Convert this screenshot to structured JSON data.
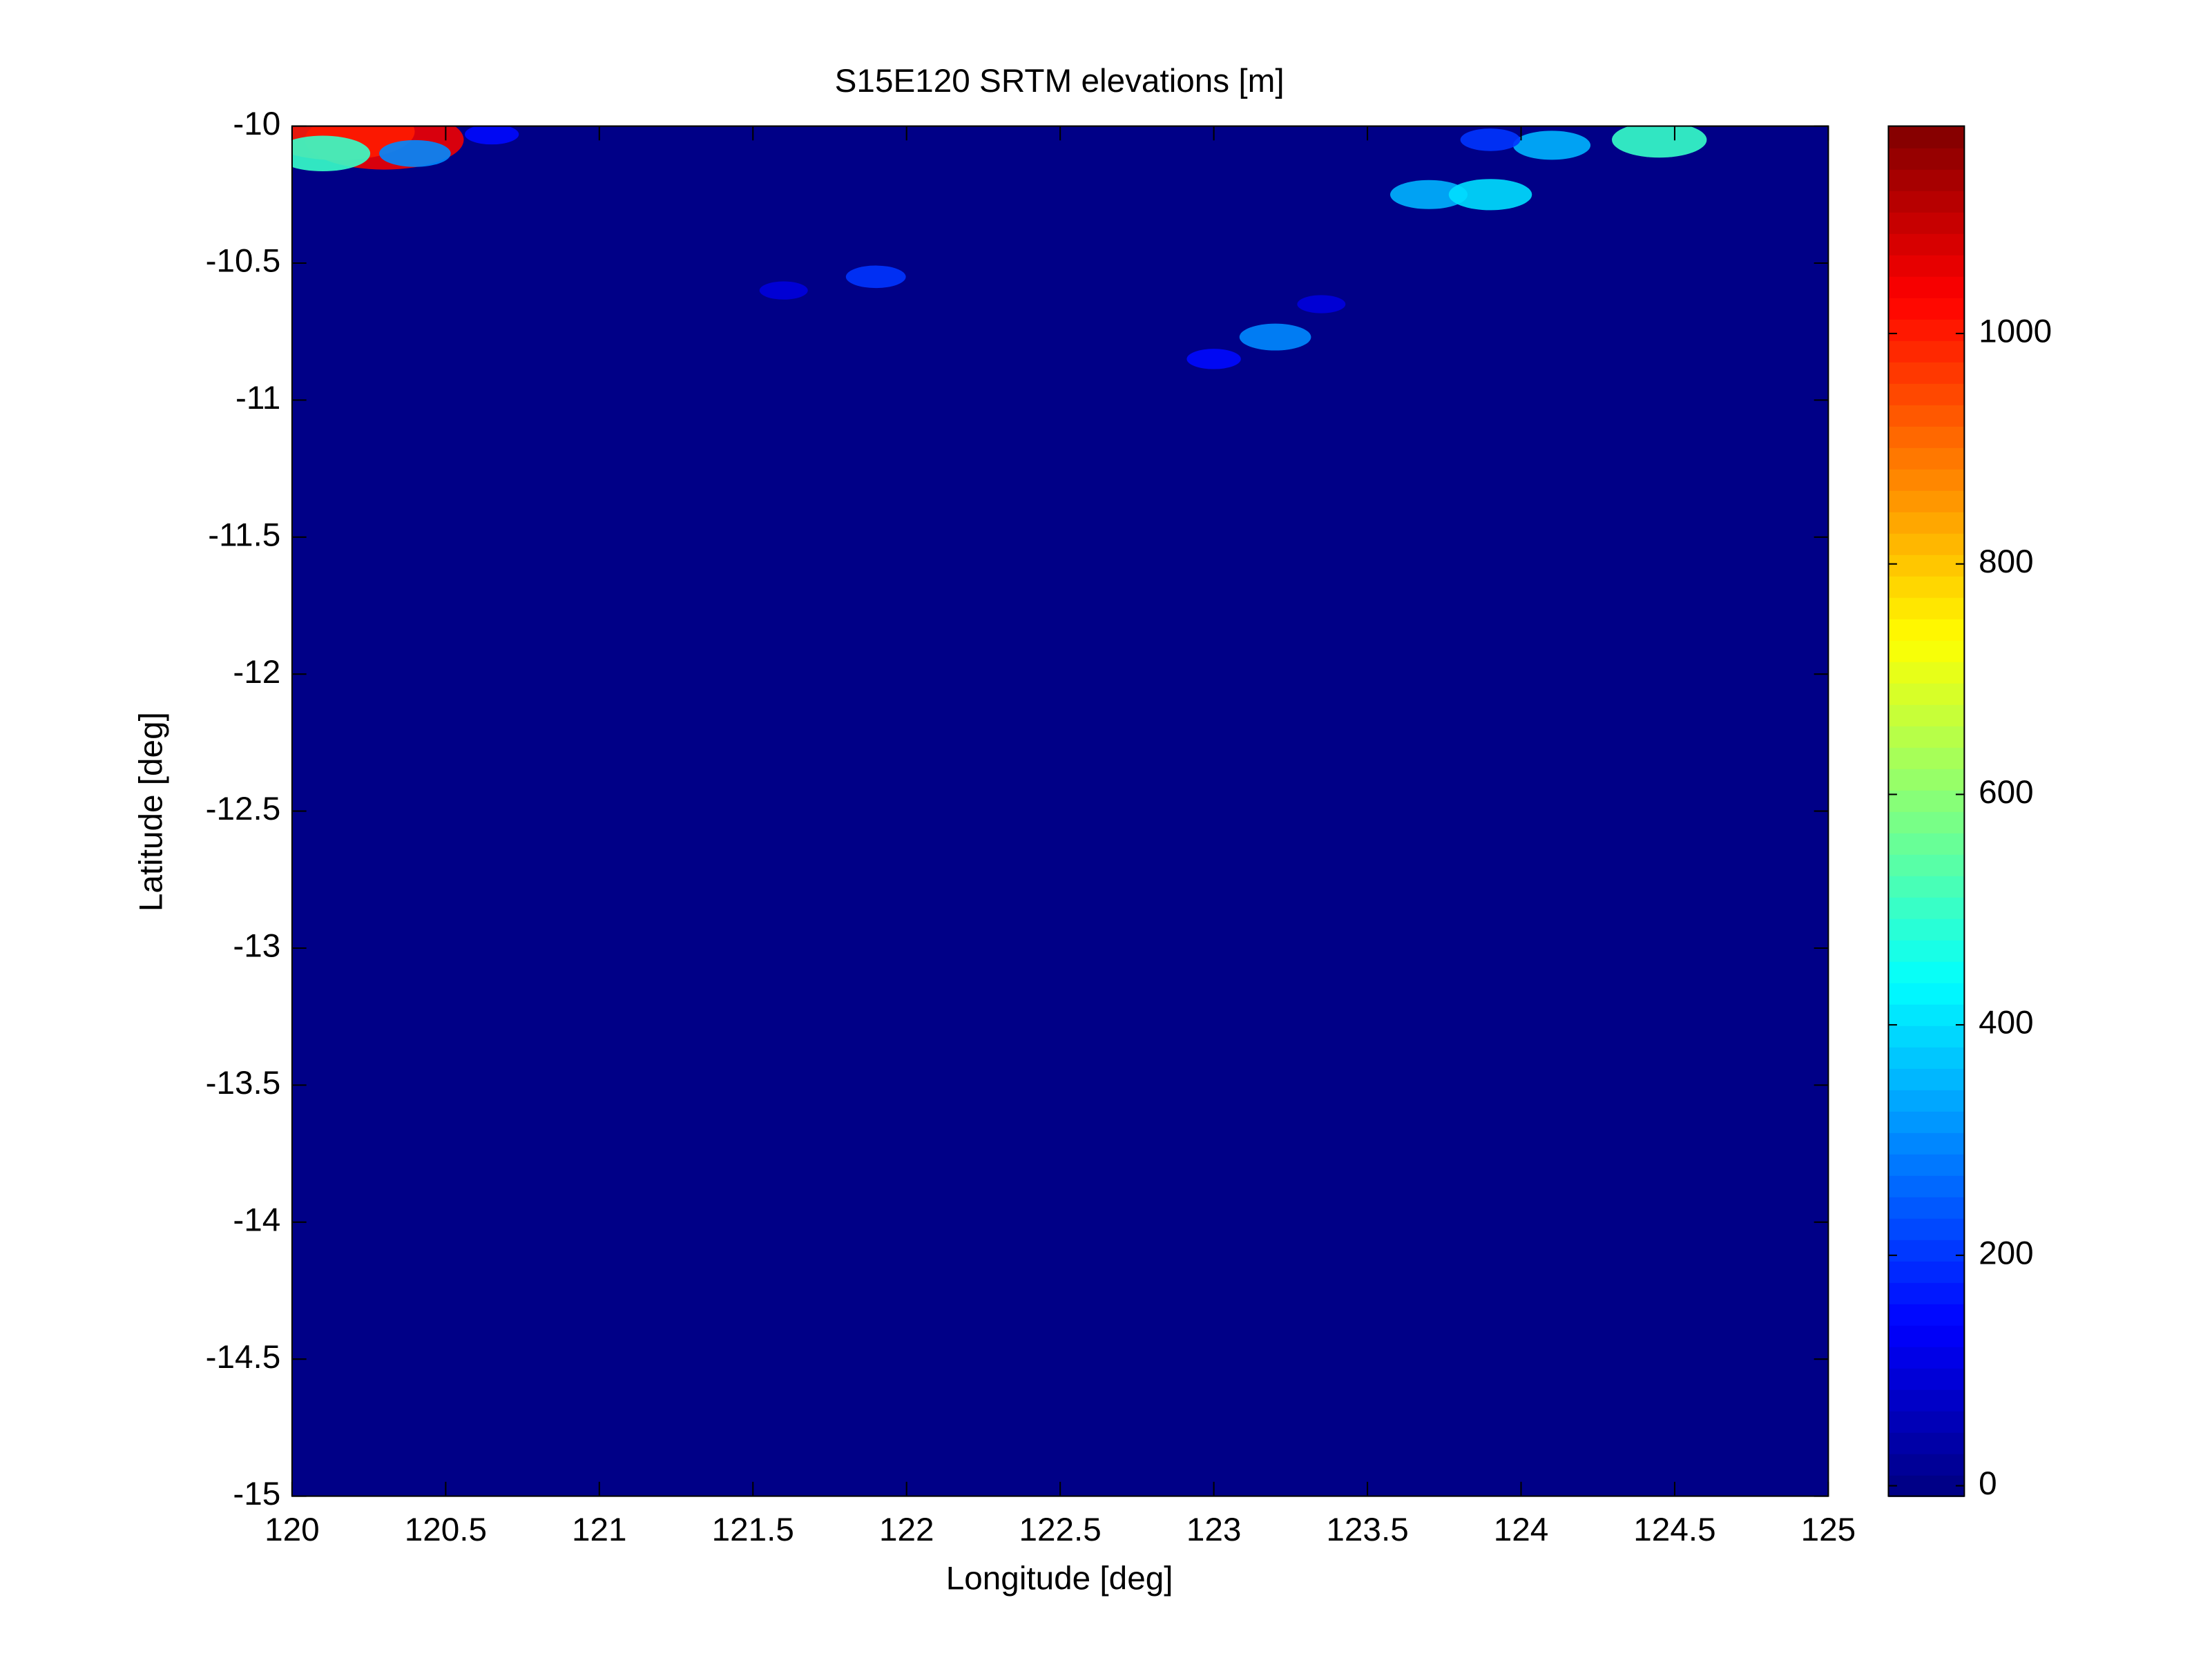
{
  "chart_data": {
    "type": "heatmap",
    "title": "S15E120 SRTM elevations [m]",
    "x_label": "Longitude [deg]",
    "y_label": "Latitude [deg]",
    "xlim": [
      120,
      125
    ],
    "xticks": [
      120,
      120.5,
      121,
      121.5,
      122,
      122.5,
      123,
      123.5,
      124,
      124.5,
      125
    ],
    "ylim": [
      -15,
      -10
    ],
    "yticks": [
      -15,
      -14.5,
      -14,
      -13.5,
      -13,
      -12.5,
      -12,
      -11.5,
      -11,
      -10.5,
      -10
    ],
    "clim": [
      -9,
      1180
    ],
    "cticks": [
      0,
      200,
      400,
      600,
      800,
      1000
    ],
    "colormap": "jet",
    "background_value": 0,
    "x": [
      120.3,
      120.15,
      120.1,
      120.4,
      120.65,
      121.9,
      121.6,
      123.2,
      123.0,
      123.35,
      123.7,
      123.9,
      124.1,
      124.45,
      123.9
    ],
    "y": [
      -10.05,
      -10.02,
      -10.1,
      -10.1,
      -10.03,
      -10.55,
      -10.6,
      -10.77,
      -10.85,
      -10.65,
      -10.25,
      -10.25,
      -10.07,
      -10.05,
      -10.05
    ],
    "values": [
      1050,
      1000,
      500,
      300,
      150,
      200,
      100,
      300,
      150,
      100,
      350,
      400,
      350,
      500,
      200
    ]
  }
}
